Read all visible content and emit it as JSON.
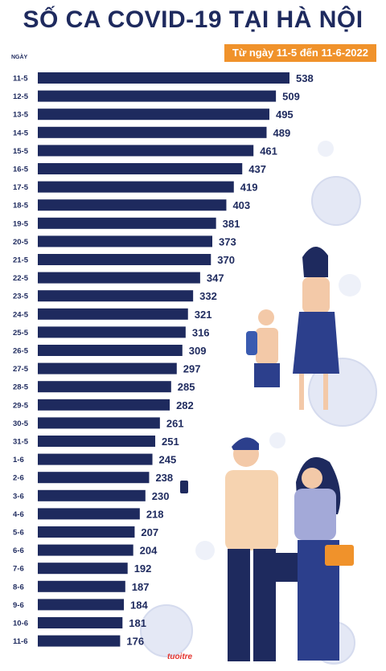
{
  "title": "SỐ CA COVID-19 TẠI HÀ NỘI",
  "subtitle": "Từ ngày 11-5 đến 11-6-2022",
  "logo": "tuoitre",
  "chart_data": {
    "type": "bar",
    "orientation": "horizontal",
    "ylabel": "NGÀY",
    "categories": [
      "11-5",
      "12-5",
      "13-5",
      "14-5",
      "15-5",
      "16-5",
      "17-5",
      "18-5",
      "19-5",
      "20-5",
      "21-5",
      "22-5",
      "23-5",
      "24-5",
      "25-5",
      "26-5",
      "27-5",
      "28-5",
      "29-5",
      "30-5",
      "31-5",
      "1-6",
      "2-6",
      "3-6",
      "4-6",
      "5-6",
      "6-6",
      "7-6",
      "8-6",
      "9-6",
      "10-6",
      "11-6"
    ],
    "values": [
      538,
      509,
      495,
      489,
      461,
      437,
      419,
      403,
      381,
      373,
      370,
      347,
      332,
      321,
      316,
      309,
      297,
      285,
      282,
      261,
      251,
      245,
      238,
      230,
      218,
      207,
      204,
      192,
      187,
      184,
      181,
      176
    ],
    "bar_color": "#1e2a5e",
    "label_color": "#1e2a5e",
    "grid": false
  }
}
